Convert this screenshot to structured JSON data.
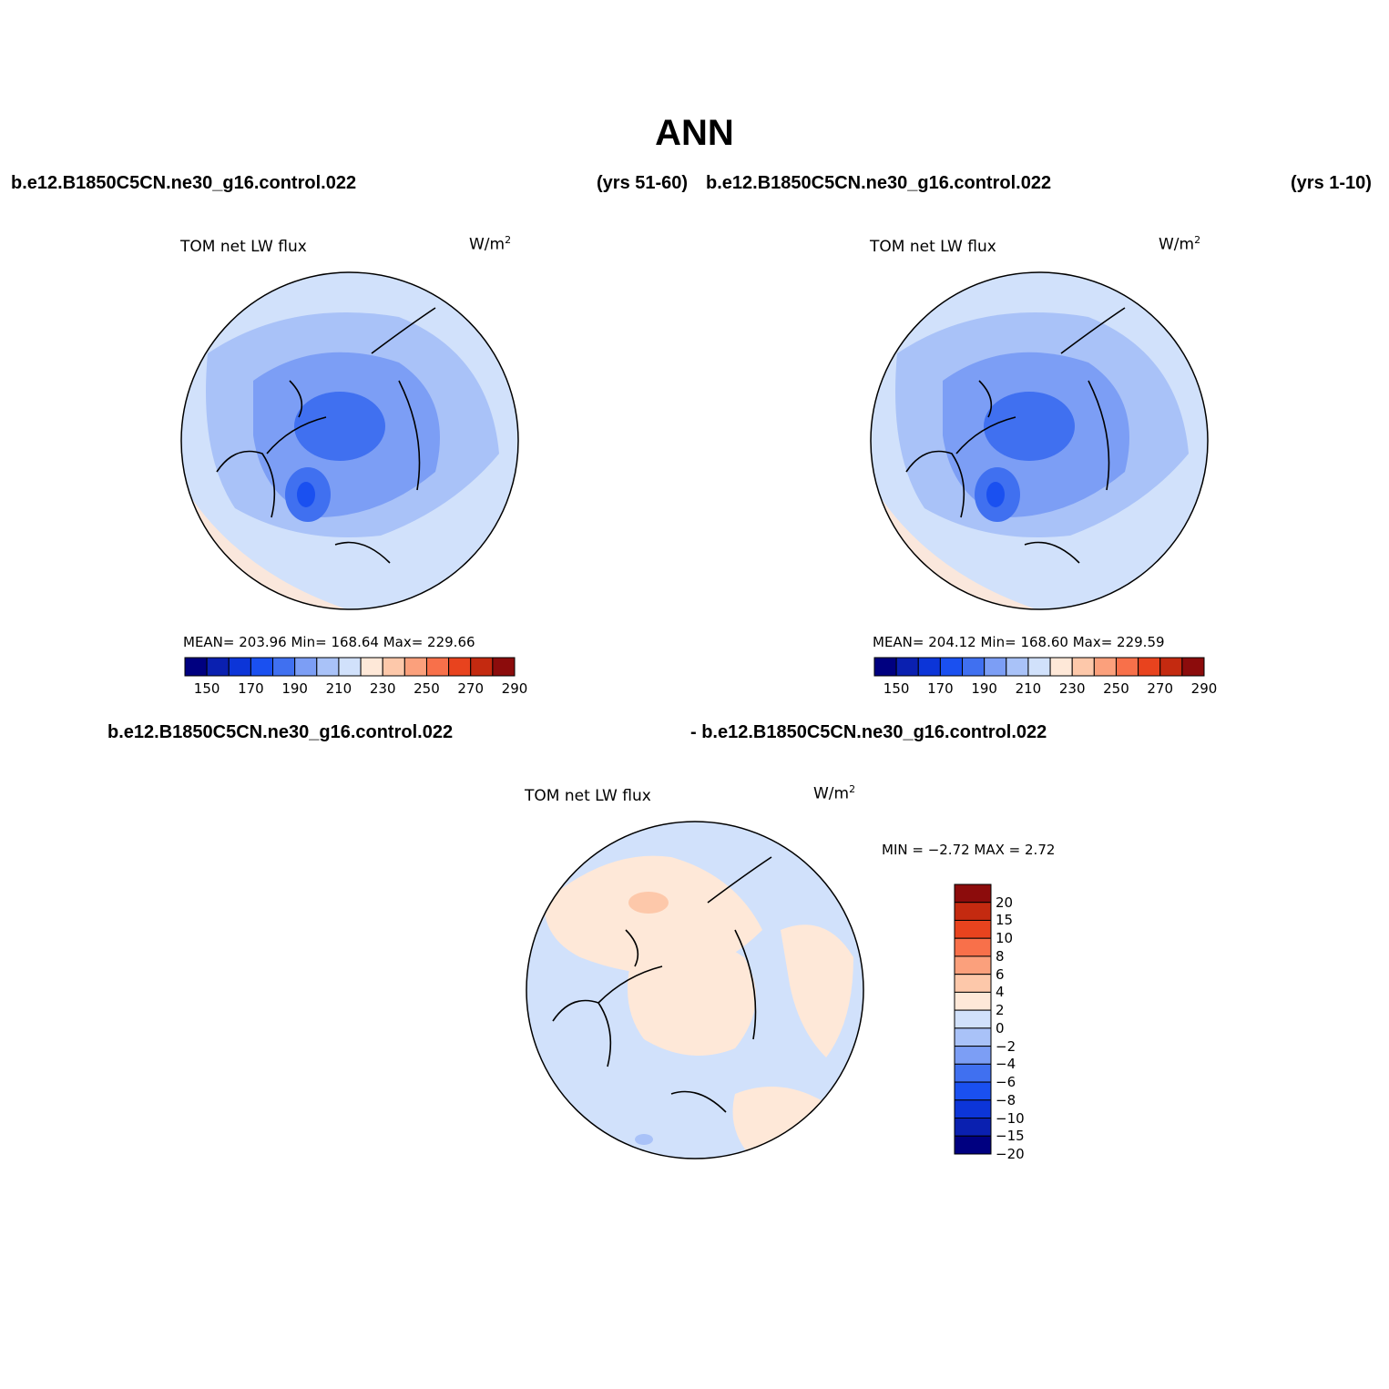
{
  "title": "ANN",
  "colors": {
    "abs_scale": [
      "#000080",
      "#0A20B0",
      "#0C35D8",
      "#1A50F0",
      "#4070F0",
      "#7C9EF5",
      "#A9C2F8",
      "#D1E1FB",
      "#FEE8D8",
      "#FDC8AA",
      "#FBA07C",
      "#F8704A",
      "#E8431E",
      "#C42A10",
      "#8C0C0C"
    ],
    "diff_scale": [
      "#8C0C0C",
      "#C42A10",
      "#E8431E",
      "#F8704A",
      "#FBA07C",
      "#FDC8AA",
      "#FEE8D8",
      "#D1E1FB",
      "#A9C2F8",
      "#7C9EF5",
      "#4070F0",
      "#1A50F0",
      "#0C35D8",
      "#0A20B0",
      "#000080"
    ]
  },
  "panels": {
    "top_left": {
      "case": "b.e12.B1850C5CN.ne30_g16.control.022",
      "years": "(yrs 51-60)",
      "variable": "TOM net LW flux",
      "units": "W/m",
      "units_sup": "2",
      "stats": "MEAN= 203.96   Min= 168.64   Max= 229.66",
      "ticks": [
        "150",
        "170",
        "190",
        "210",
        "230",
        "250",
        "270",
        "290"
      ]
    },
    "top_right": {
      "case": "b.e12.B1850C5CN.ne30_g16.control.022",
      "years": "(yrs 1-10)",
      "variable": "TOM net LW flux",
      "units": "W/m",
      "units_sup": "2",
      "stats": "MEAN= 204.12   Min= 168.60   Max= 229.59",
      "ticks": [
        "150",
        "170",
        "190",
        "210",
        "230",
        "250",
        "270",
        "290"
      ]
    },
    "bottom": {
      "case_left": "b.e12.B1850C5CN.ne30_g16.control.022",
      "case_right": "- b.e12.B1850C5CN.ne30_g16.control.022",
      "variable": "TOM net LW flux",
      "units": "W/m",
      "units_sup": "2",
      "stats": "MIN =   −2.72  MAX =    2.72",
      "ticks": [
        "20",
        "15",
        "10",
        "8",
        "6",
        "4",
        "2",
        "0",
        "−2",
        "−4",
        "−6",
        "−8",
        "−10",
        "−15",
        "−20"
      ]
    }
  }
}
